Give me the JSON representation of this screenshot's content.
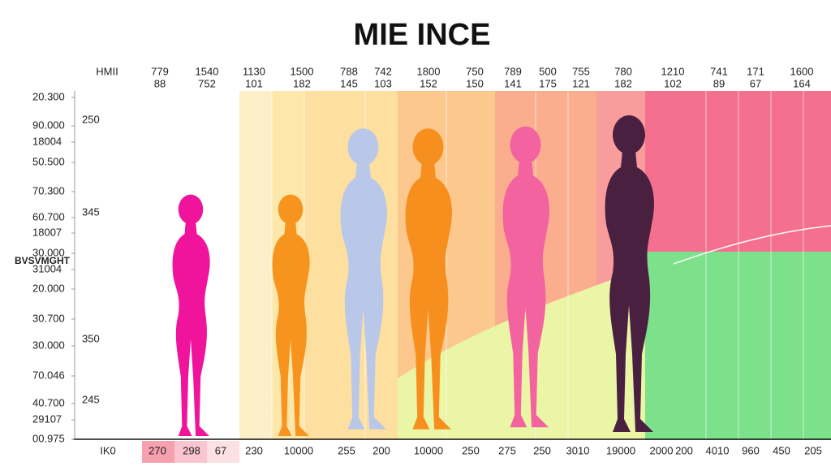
{
  "title": "MIE INCE",
  "y_axis_title": "BVSVMGHT",
  "header": {
    "label": "HMII",
    "columns": [
      [
        "779",
        "88"
      ],
      [
        "1540",
        "752"
      ],
      [
        "1130",
        "101"
      ],
      [
        "1500",
        "182"
      ],
      [
        "788",
        "145"
      ],
      [
        "742",
        "103"
      ],
      [
        "1800",
        "152"
      ],
      [
        "750",
        "150"
      ],
      [
        "789",
        "141"
      ],
      [
        "500",
        "175"
      ],
      [
        "755",
        "121"
      ],
      [
        "780",
        "182"
      ],
      [
        "1210",
        "102"
      ],
      [
        "741",
        "89"
      ],
      [
        "171",
        "67"
      ],
      [
        "1600",
        "164"
      ]
    ]
  },
  "left_labels": [
    "20.300",
    "90.000",
    "18004",
    "50.500",
    "70.300",
    "60.700",
    "18007",
    "30.000",
    "31004",
    "20.000",
    "30.700",
    "30.000",
    "70.046",
    "40.700",
    "29107",
    "00.975"
  ],
  "inner_labels": [
    "250",
    "345",
    "350",
    "245"
  ],
  "bottom": {
    "label": "IK0",
    "values": [
      "270",
      "298",
      "67",
      "230",
      "10000",
      "255",
      "200",
      "10000",
      "250",
      "275",
      "250",
      "3010",
      "19000",
      "2000",
      "200",
      "4010",
      "960",
      "450",
      "205"
    ]
  }
}
